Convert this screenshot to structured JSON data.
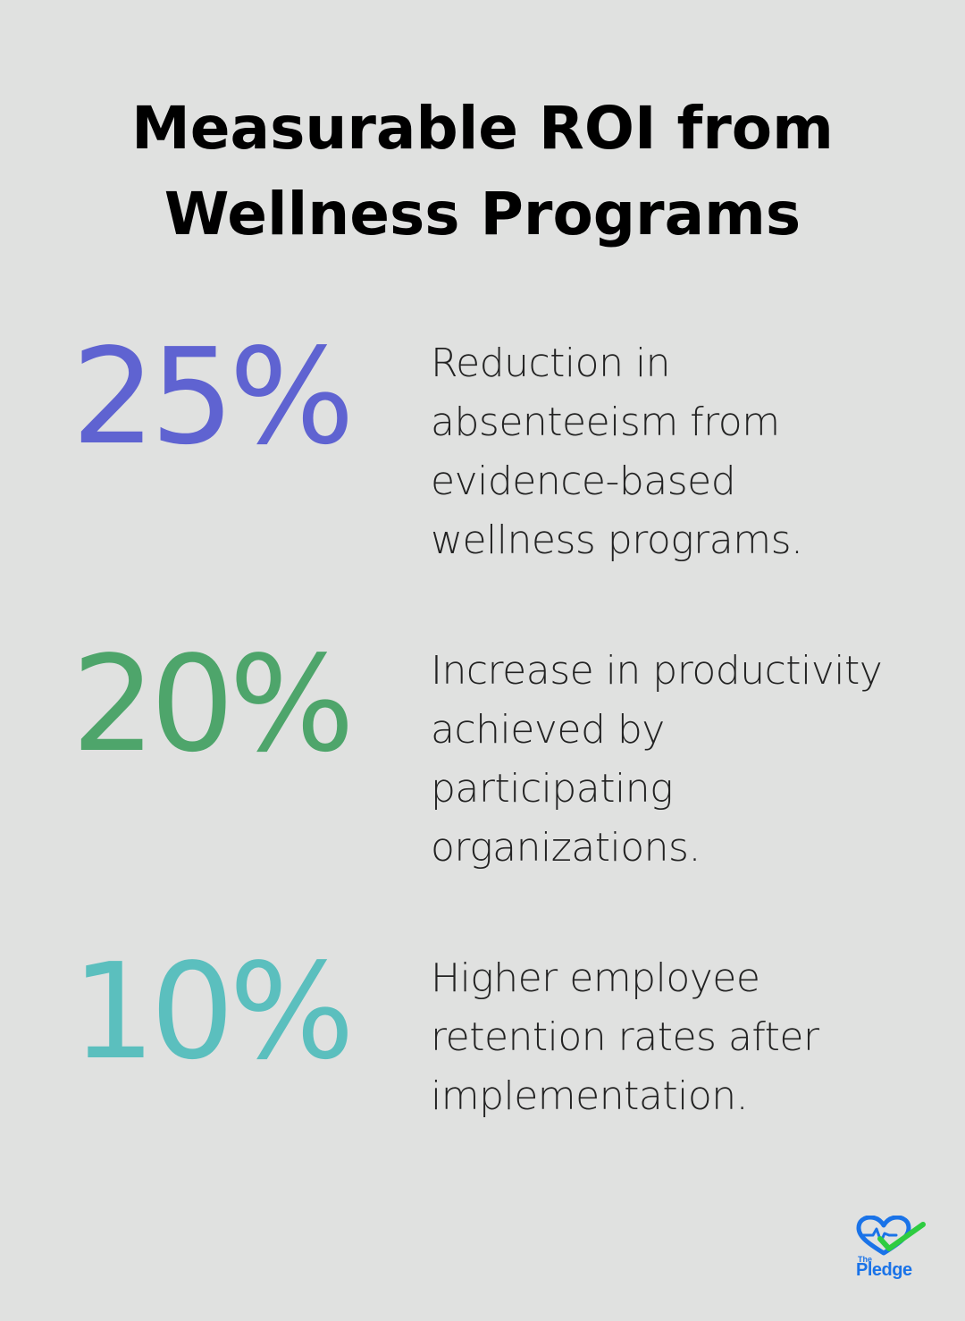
{
  "title": {
    "line1": "Measurable ROI from",
    "line2": "Wellness Programs"
  },
  "stats": [
    {
      "value": "25%",
      "color": "#5f63d1",
      "lines": [
        "Reduction in",
        "absenteeism from",
        "evidence-based",
        "wellness programs."
      ]
    },
    {
      "value": "20%",
      "color": "#4ea56b",
      "lines": [
        "Increase in productivity",
        "achieved by",
        "participating",
        "organizations."
      ]
    },
    {
      "value": "10%",
      "color": "#5bbfbe",
      "lines": [
        "Higher employee",
        "retention rates after",
        "implementation."
      ]
    }
  ],
  "logo": {
    "icon": "heart-check-logo-icon",
    "small_text": "The",
    "brand_text": "Pledge",
    "colors": {
      "heart": "#1a73e8",
      "check": "#2ecc40"
    }
  }
}
